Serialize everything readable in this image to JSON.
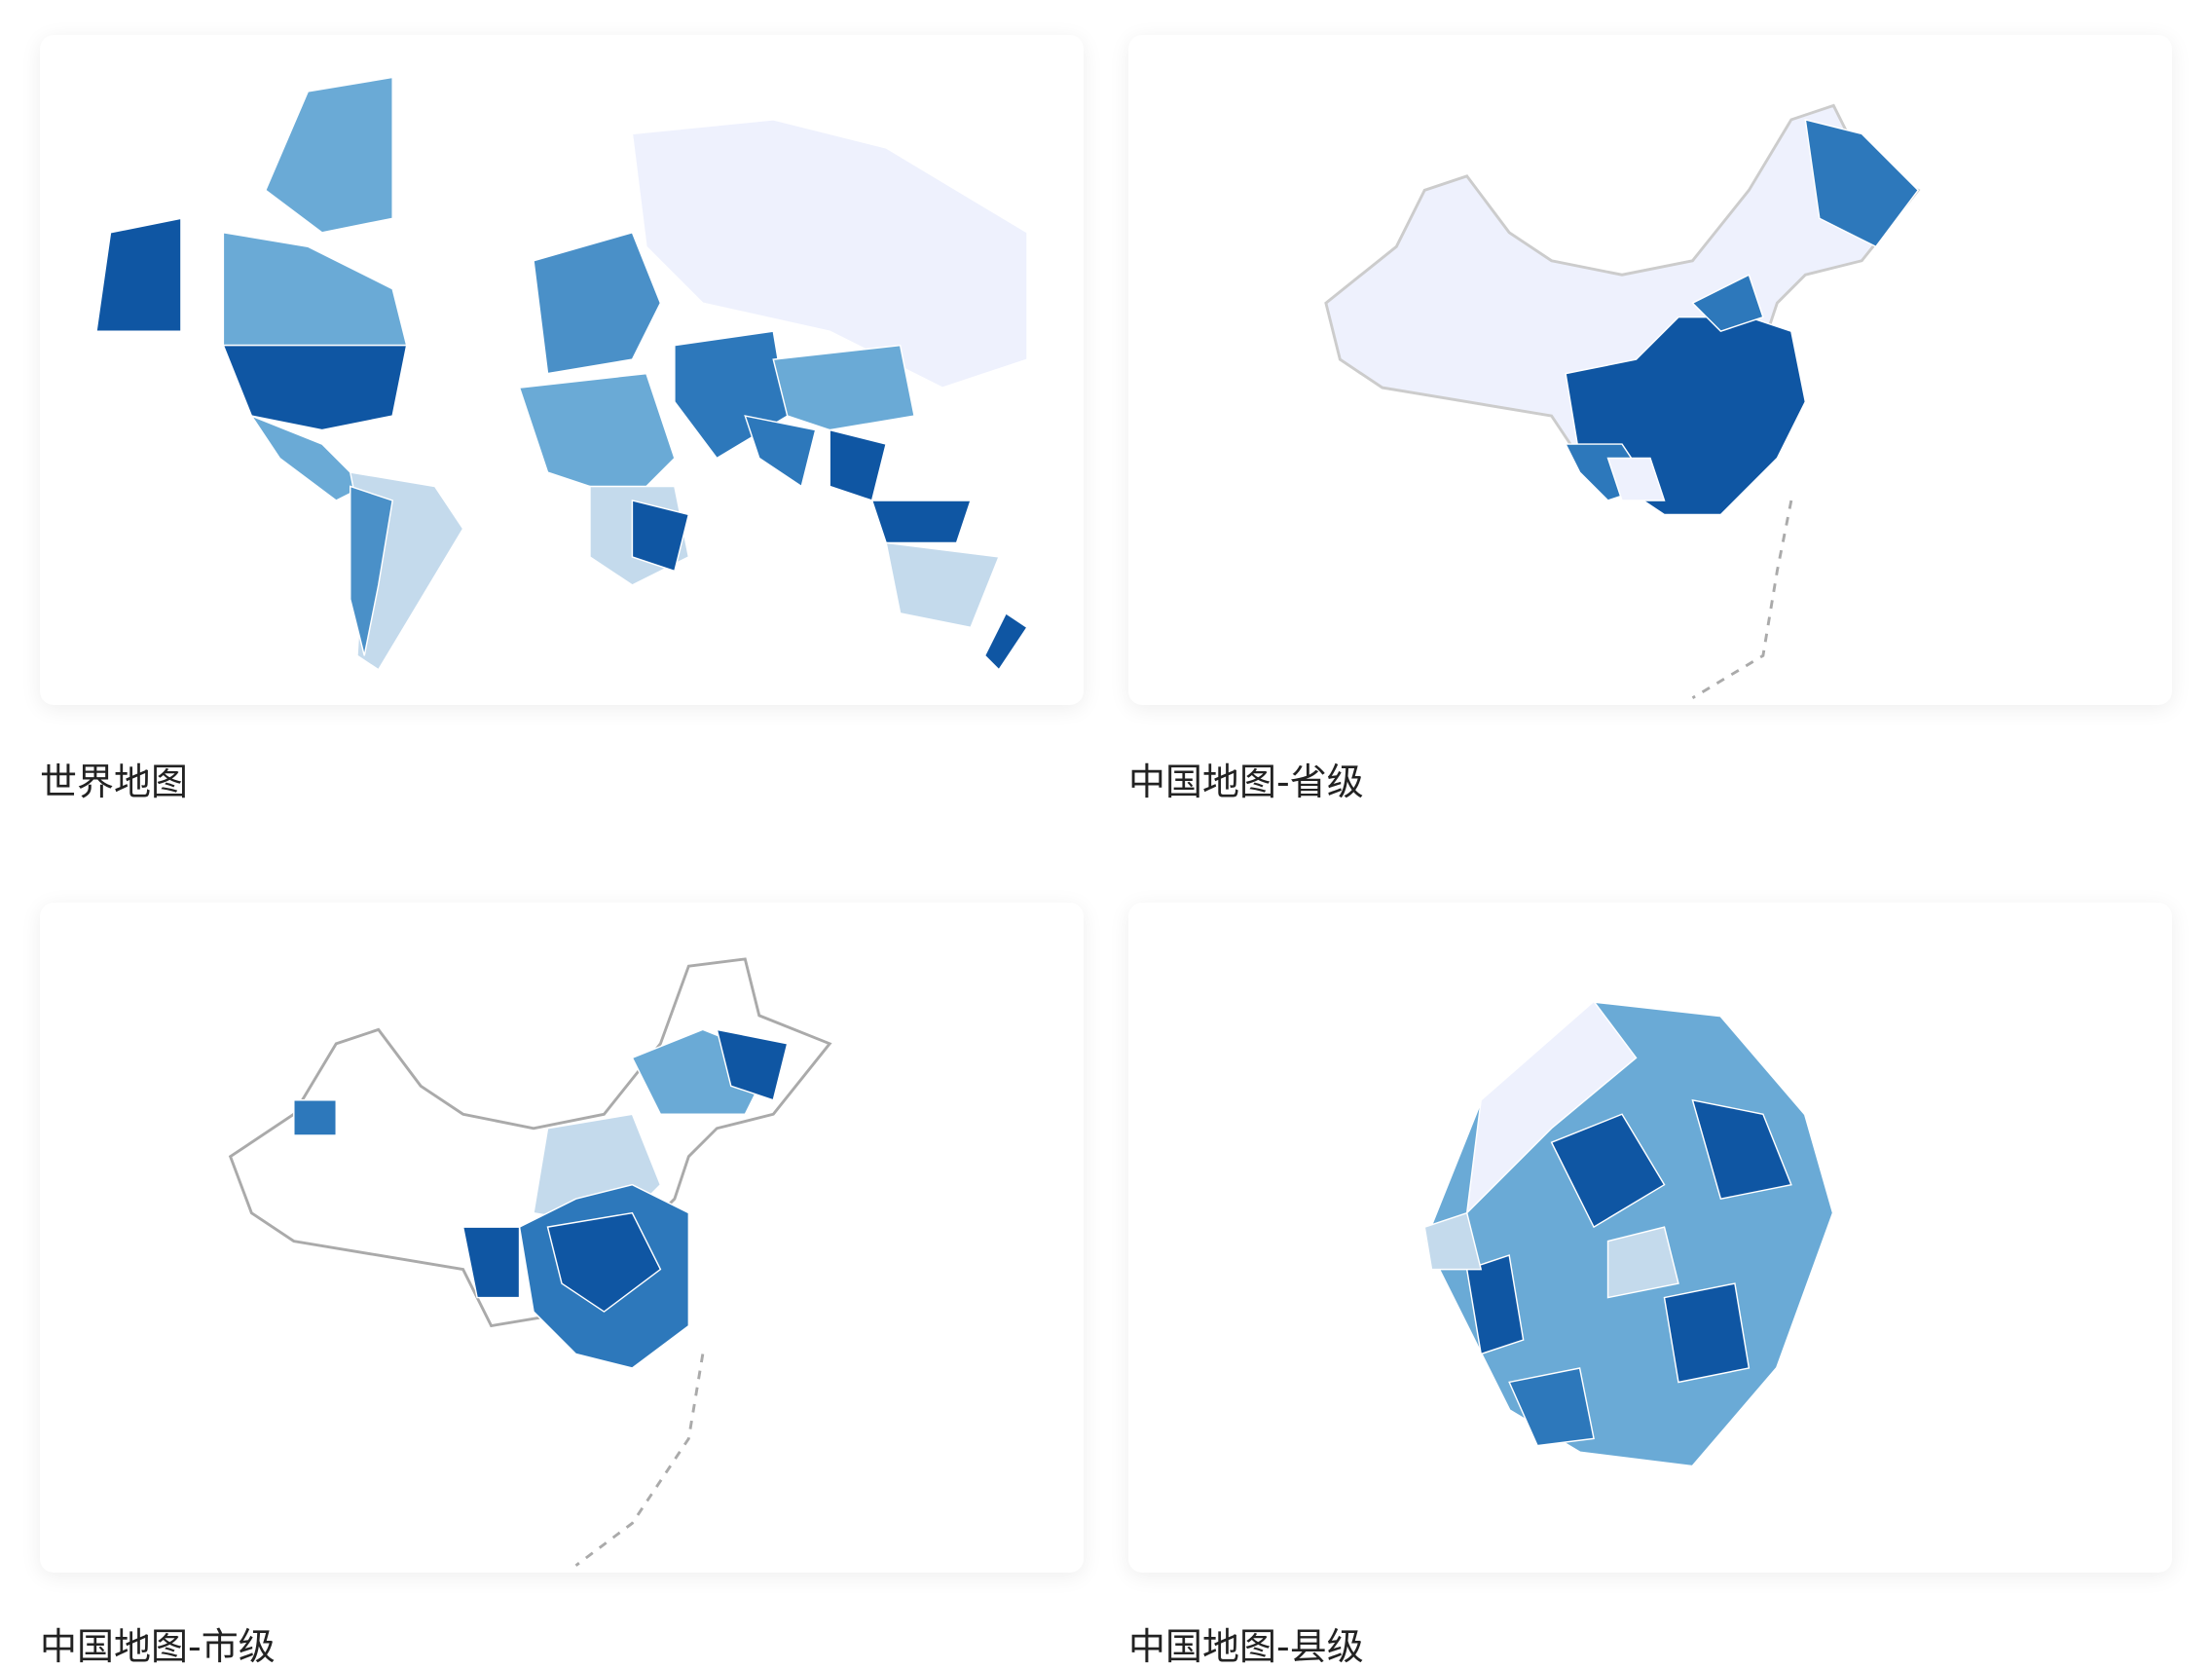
{
  "gallery": {
    "items": [
      {
        "title": "世界地图"
      },
      {
        "title": "中国地图-省级"
      },
      {
        "title": "中国地图-市级"
      },
      {
        "title": "中国地图-县级"
      }
    ]
  }
}
